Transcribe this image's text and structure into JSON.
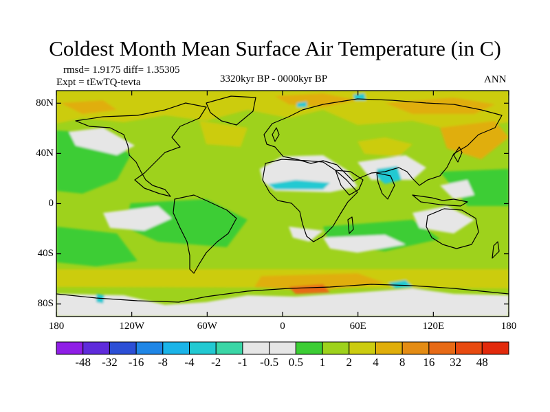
{
  "title": "Coldest Month Mean Surface Air Temperature (in C)",
  "stats_line": "rmsd= 1.9175 diff= 1.35305",
  "experiment_line": "Expt = tEwTQ-tevta",
  "period": "3320kyr BP - 0000kyr BP",
  "season": "ANN",
  "map": {
    "lat_ticks": [
      {
        "value": 80,
        "label": "80N"
      },
      {
        "value": 40,
        "label": "40N"
      },
      {
        "value": 0,
        "label": "0"
      },
      {
        "value": -40,
        "label": "40S"
      },
      {
        "value": -80,
        "label": "80S"
      }
    ],
    "lon_ticks": [
      {
        "value": -180,
        "label": "180"
      },
      {
        "value": -120,
        "label": "120W"
      },
      {
        "value": -60,
        "label": "60W"
      },
      {
        "value": 0,
        "label": "0"
      },
      {
        "value": 60,
        "label": "60E"
      },
      {
        "value": 120,
        "label": "120E"
      },
      {
        "value": 180,
        "label": "180"
      }
    ],
    "lat_range": [
      -90,
      90
    ],
    "lon_range": [
      -180,
      180
    ],
    "background_color": "#9ed21c"
  },
  "colorbar": {
    "colors": [
      "#8f1ee6",
      "#5f2bdb",
      "#2c4fd6",
      "#1f86e6",
      "#1bb4e8",
      "#22c9d2",
      "#3ad6a6",
      "#e6e6e6",
      "#e6e6e6",
      "#3ccd34",
      "#9ed21c",
      "#cccc10",
      "#e0ae0a",
      "#e48c14",
      "#e76a16",
      "#e84a10",
      "#e22a0c"
    ],
    "labels": [
      "-48",
      "-32",
      "-16",
      "-8",
      "-4",
      "-2",
      "-1",
      "-0.5",
      "0.5",
      "1",
      "2",
      "4",
      "8",
      "16",
      "32",
      "48"
    ]
  }
}
